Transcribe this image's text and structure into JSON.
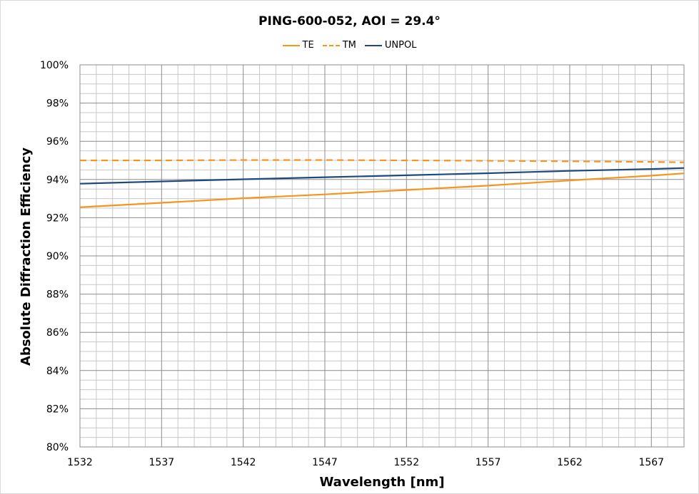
{
  "chart_data": {
    "type": "line",
    "title": "PING-600-052, AOI = 29.4°",
    "xlabel": "Wavelength [nm]",
    "ylabel": "Absolute Diffraction Efficiency",
    "xlim": [
      1532,
      1569
    ],
    "ylim": [
      80,
      100
    ],
    "x_ticks": [
      1532,
      1537,
      1542,
      1547,
      1552,
      1557,
      1562,
      1567
    ],
    "y_ticks": [
      "80%",
      "82%",
      "84%",
      "86%",
      "88%",
      "90%",
      "92%",
      "94%",
      "96%",
      "98%",
      "100%"
    ],
    "y_tick_values": [
      80,
      82,
      84,
      86,
      88,
      90,
      92,
      94,
      96,
      98,
      100
    ],
    "grid": true,
    "legend_position": "top",
    "x": [
      1532,
      1537,
      1542,
      1547,
      1552,
      1557,
      1562,
      1567,
      1569
    ],
    "series": [
      {
        "name": "TE",
        "color": "#f7941d",
        "dash": "solid",
        "values": [
          92.55,
          92.78,
          93.02,
          93.22,
          93.45,
          93.68,
          93.95,
          94.2,
          94.32
        ]
      },
      {
        "name": "TM",
        "color": "#f7941d",
        "dash": "dashed",
        "values": [
          95.0,
          95.0,
          95.02,
          95.02,
          95.0,
          94.98,
          94.95,
          94.92,
          94.9
        ]
      },
      {
        "name": "UNPOL",
        "color": "#1f497d",
        "dash": "solid",
        "values": [
          93.78,
          93.9,
          94.01,
          94.12,
          94.22,
          94.33,
          94.45,
          94.55,
          94.6
        ]
      }
    ]
  }
}
